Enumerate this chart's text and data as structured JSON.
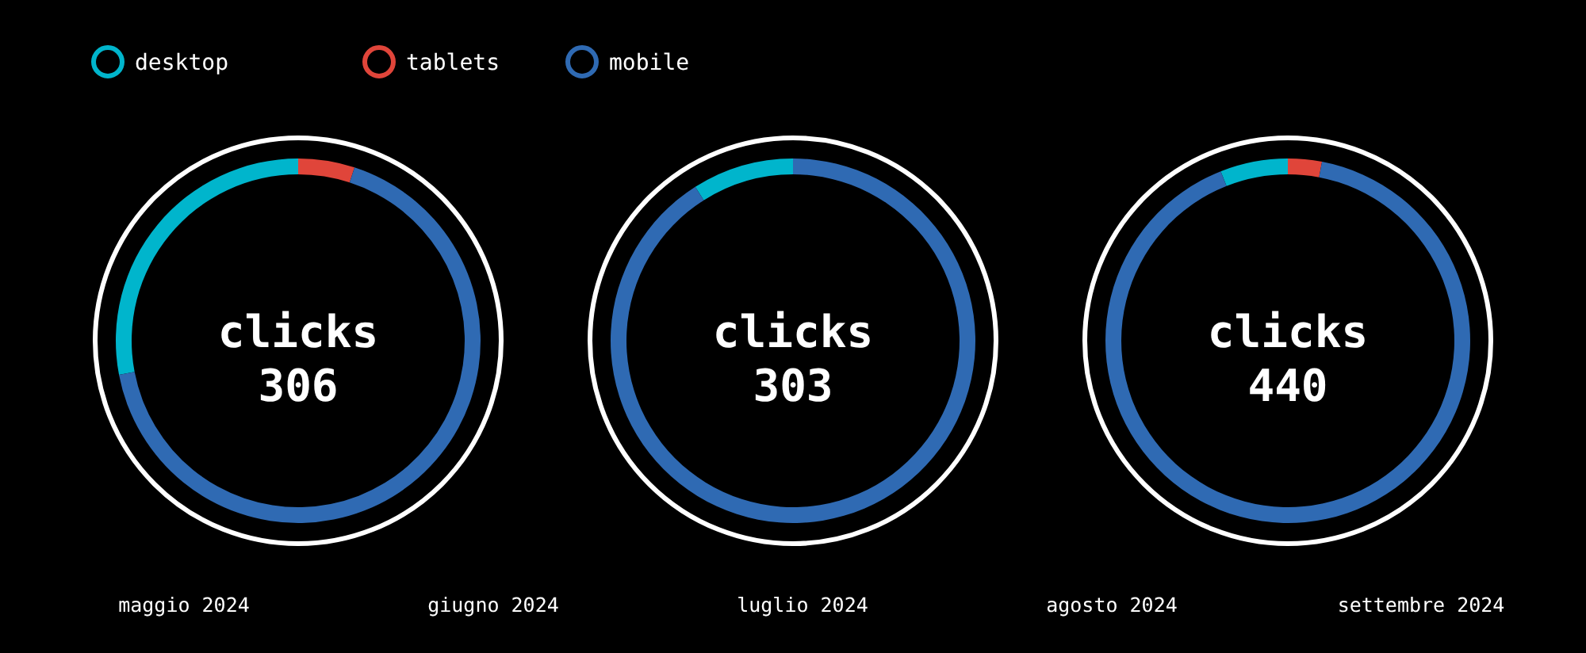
{
  "chart_data": [
    {
      "type": "donut",
      "title": "clicks",
      "subtitle": "306",
      "categories": [
        "desktop",
        "tablets",
        "mobile"
      ],
      "values": [
        28,
        5,
        67
      ],
      "colors": [
        "#00b5cc",
        "#e0453a",
        "#2f6ab3"
      ],
      "legend": "top"
    },
    {
      "type": "donut",
      "title": "clicks",
      "subtitle": "303",
      "categories": [
        null,
        null
      ],
      "values": [
        9,
        91
      ],
      "colors": [
        "#00b5cc",
        "#2f6ab3"
      ]
    },
    {
      "type": "donut",
      "title": "clicks",
      "subtitle": "440",
      "categories": [
        null,
        null,
        null
      ],
      "values": [
        6,
        3,
        91
      ],
      "colors": [
        "#00b5cc",
        "#e0453a",
        "#2f6ab3"
      ]
    },
    {
      "type": "other",
      "annotations": [
        "maggio 2024",
        "giugno 2024",
        "luglio 2024",
        "agosto 2024",
        "settembre 2024"
      ]
    }
  ]
}
